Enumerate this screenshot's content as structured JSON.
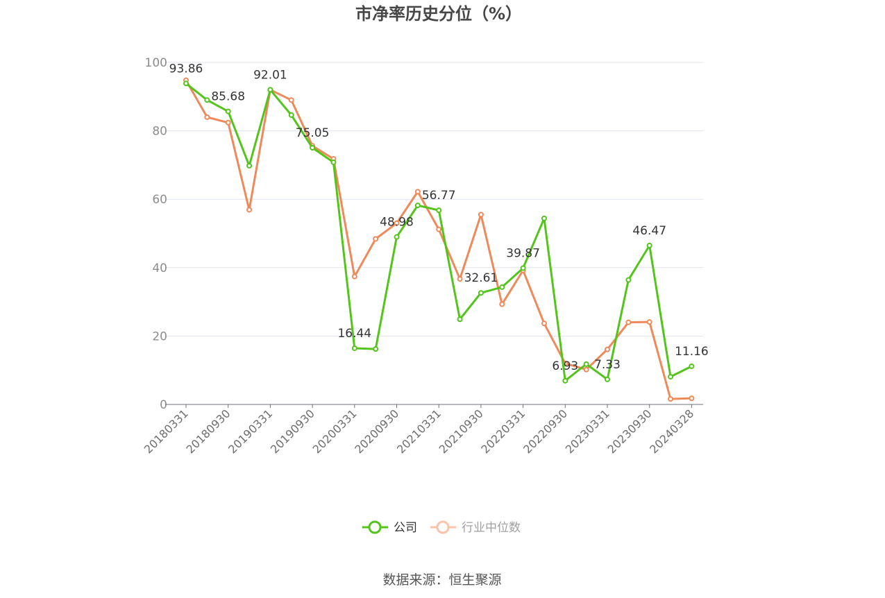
{
  "chart_data": {
    "type": "line",
    "title": "市净率历史分位（%）",
    "xlabel": "",
    "ylabel": "",
    "ylim": [
      0,
      100
    ],
    "yticks": [
      "0",
      "20",
      "40",
      "60",
      "80",
      "100"
    ],
    "x": [
      "20180331",
      "20180630",
      "20180930",
      "20181231",
      "20190331",
      "20190630",
      "20190930",
      "20191231",
      "20200331",
      "20200630",
      "20200930",
      "20201231",
      "20210331",
      "20210630",
      "20210930",
      "20211231",
      "20220331",
      "20220630",
      "20220930",
      "20221231",
      "20230331",
      "20230630",
      "20230930",
      "20231231",
      "20240328"
    ],
    "xtick_labels": [
      "20180331",
      "20180930",
      "20190331",
      "20190930",
      "20200331",
      "20200930",
      "20210331",
      "20210930",
      "20220331",
      "20220930",
      "20230331",
      "20230930",
      "20240328"
    ],
    "grid": true,
    "legend_position": "bottom-center",
    "series": [
      {
        "name": "公司",
        "color": "#52c41a",
        "values": [
          93.86,
          89.0,
          85.68,
          69.8,
          92.01,
          84.6,
          75.05,
          70.8,
          16.44,
          16.2,
          48.98,
          58.2,
          56.77,
          24.9,
          32.61,
          34.3,
          39.87,
          54.4,
          6.93,
          11.8,
          7.33,
          36.4,
          46.47,
          8.1,
          11.16
        ],
        "labels": [
          "93.86",
          "",
          "85.68",
          "",
          "92.01",
          "",
          "75.05",
          "",
          "16.44",
          "",
          "48.98",
          "",
          "56.77",
          "",
          "32.61",
          "",
          "39.87",
          "",
          "6.93",
          "",
          "7.33",
          "",
          "46.47",
          "",
          "11.16"
        ]
      },
      {
        "name": "行业中位数",
        "color": "#f0895a",
        "values": [
          94.8,
          84.0,
          82.4,
          56.9,
          92.0,
          89.0,
          75.6,
          71.8,
          37.4,
          48.4,
          53.0,
          62.2,
          51.2,
          36.7,
          55.5,
          29.3,
          39.2,
          23.7,
          12.0,
          10.2,
          16.1,
          24.0,
          24.1,
          1.6,
          1.8
        ]
      }
    ],
    "source": "数据来源：恒生聚源"
  }
}
